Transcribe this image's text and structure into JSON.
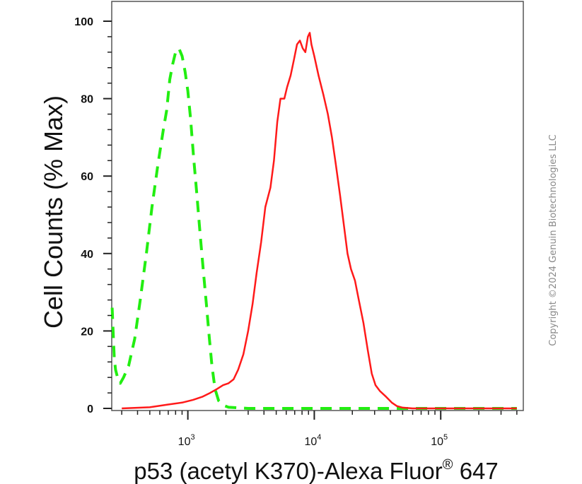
{
  "chart_data": {
    "type": "line",
    "title": "",
    "ylabel": "Cell Counts (% Max)",
    "xlabel": {
      "prefix": "p53 (acetyl K370)-Alexa Fluor",
      "superscript": "®",
      "suffix": " 647"
    },
    "x_scale": "log",
    "xlim": [
      250,
      450000
    ],
    "ylim": [
      0,
      104
    ],
    "y_ticks": [
      0,
      20,
      40,
      60,
      80,
      100
    ],
    "y_tick_labels": [
      "0",
      "20",
      "40",
      "60",
      "80",
      "100"
    ],
    "x_major_ticks": [
      1000,
      10000,
      100000
    ],
    "x_tick_labels": [
      {
        "base": "10",
        "exp": "3"
      },
      {
        "base": "10",
        "exp": "4"
      },
      {
        "base": "10",
        "exp": "5"
      }
    ],
    "grid": false,
    "legend": "none",
    "series": [
      {
        "color": "#22ee11",
        "style": "dashed",
        "points": [
          [
            252,
            26
          ],
          [
            258,
            18
          ],
          [
            262,
            13
          ],
          [
            268,
            10
          ],
          [
            278,
            8
          ],
          [
            292,
            6.5
          ],
          [
            310,
            8
          ],
          [
            340,
            11
          ],
          [
            380,
            18
          ],
          [
            420,
            28
          ],
          [
            470,
            40
          ],
          [
            520,
            52
          ],
          [
            580,
            63
          ],
          [
            640,
            72
          ],
          [
            680,
            77
          ],
          [
            720,
            85
          ],
          [
            760,
            89
          ],
          [
            800,
            92
          ],
          [
            850,
            93
          ],
          [
            900,
            91
          ],
          [
            950,
            87
          ],
          [
            1000,
            82
          ],
          [
            1050,
            75
          ],
          [
            1110,
            65
          ],
          [
            1180,
            55
          ],
          [
            1250,
            45
          ],
          [
            1330,
            35
          ],
          [
            1400,
            27
          ],
          [
            1480,
            18
          ],
          [
            1550,
            11
          ],
          [
            1640,
            5
          ],
          [
            1750,
            2
          ],
          [
            1900,
            0.8
          ],
          [
            2100,
            0.3
          ],
          [
            3000,
            0
          ],
          [
            10000,
            0
          ],
          [
            100000,
            0
          ],
          [
            400000,
            0
          ]
        ]
      },
      {
        "color": "#ff1a1a",
        "style": "solid",
        "points": [
          [
            300,
            0
          ],
          [
            500,
            0.3
          ],
          [
            700,
            1
          ],
          [
            900,
            1.5
          ],
          [
            1100,
            2.2
          ],
          [
            1300,
            3
          ],
          [
            1500,
            4
          ],
          [
            1700,
            5
          ],
          [
            1900,
            6
          ],
          [
            2100,
            6.5
          ],
          [
            2300,
            7.5
          ],
          [
            2500,
            10
          ],
          [
            2750,
            14
          ],
          [
            3000,
            20
          ],
          [
            3250,
            27
          ],
          [
            3500,
            35
          ],
          [
            3800,
            43
          ],
          [
            4100,
            52
          ],
          [
            4500,
            57
          ],
          [
            4800,
            64
          ],
          [
            5100,
            74
          ],
          [
            5400,
            80
          ],
          [
            5800,
            80
          ],
          [
            6100,
            83
          ],
          [
            6500,
            86
          ],
          [
            6900,
            90
          ],
          [
            7300,
            94
          ],
          [
            7700,
            95
          ],
          [
            8100,
            93
          ],
          [
            8500,
            92
          ],
          [
            8900,
            96
          ],
          [
            9200,
            97
          ],
          [
            9500,
            94
          ],
          [
            10000,
            91
          ],
          [
            10800,
            86
          ],
          [
            11800,
            81
          ],
          [
            12800,
            76
          ],
          [
            13800,
            70
          ],
          [
            14800,
            63
          ],
          [
            16000,
            55
          ],
          [
            17200,
            47
          ],
          [
            18300,
            40
          ],
          [
            19500,
            36
          ],
          [
            21000,
            33
          ],
          [
            22500,
            28
          ],
          [
            24500,
            22
          ],
          [
            26500,
            15
          ],
          [
            28500,
            9
          ],
          [
            30500,
            6
          ],
          [
            33000,
            4.5
          ],
          [
            37000,
            3
          ],
          [
            41000,
            1.5
          ],
          [
            45000,
            0.6
          ],
          [
            50000,
            0.2
          ],
          [
            60000,
            0
          ],
          [
            100000,
            0
          ],
          [
            400000,
            0
          ]
        ]
      }
    ]
  },
  "copyright": "Copyright ©2024 Genuin Biotechnologies LLC"
}
